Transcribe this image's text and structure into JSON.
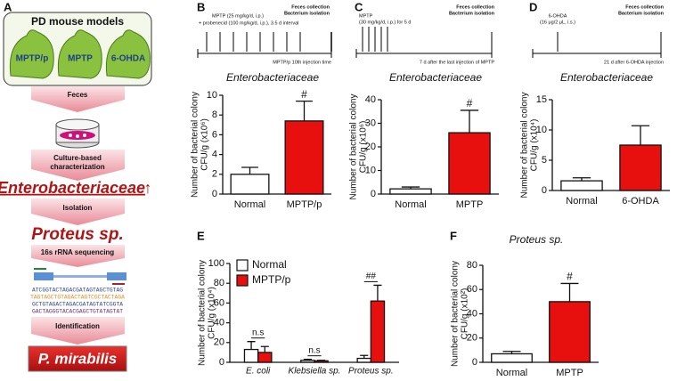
{
  "panels": {
    "a": "A",
    "b": "B",
    "c": "C",
    "d": "D",
    "e": "E",
    "f": "F"
  },
  "panel_a": {
    "title": "PD mouse models",
    "models": [
      "MPTP/p",
      "MPTP",
      "6-OHDA"
    ],
    "feces": "Feces",
    "culture": [
      "Culture-based",
      "characterization"
    ],
    "family": "Enterobacteriaceae",
    "arrow": "↑",
    "isolation": "Isolation",
    "genus": "Proteus sp.",
    "sequencing": "16s rRNA sequencing",
    "sequences": [
      "ATCGGTACTAGACGATAGTAGCTGTAG",
      "TAGTAGCTGTAGACTAGTCGCTACTAGA",
      "GCTGTAGACTAGACGATAGTATCGGTA",
      "GACTAGGGTACACGAGCTGTATAGTAT"
    ],
    "identification": "Identification",
    "species": "P. mirabilis"
  },
  "timelines": [
    {
      "treatment": [
        "MPTP (25 mg/kg/d, i.p.)",
        "+ probenecid (100 mg/kg/d, i.p.), 3.5 d interval"
      ],
      "endpoint": [
        "Feces collection",
        "Bacterium isolation"
      ],
      "note": "MPTP/p 10th injection time"
    },
    {
      "treatment": [
        "MPTP",
        "(30 mg/kg/d, i.p.) for 5 d"
      ],
      "endpoint": [
        "Feces collection",
        "Bacterium isolation"
      ],
      "note": "7 d after the last injection of MPTP"
    },
    {
      "treatment": [
        "6-OHDA",
        "(16 μg/2 μL, i.s.)"
      ],
      "endpoint": [
        "Feces collection",
        "Bacterium isolation"
      ],
      "note": "21 d after 6-OHDA injection"
    }
  ],
  "chart_data": [
    {
      "type": "bar",
      "title": "Enterobacteriaceae",
      "ylabel": [
        "Number of bacterial colony",
        "CFU/g (x10⁶)"
      ],
      "categories": [
        "Normal",
        "MPTP/p"
      ],
      "colors": [
        "#ffffff",
        "#e8100f"
      ],
      "values": [
        2.0,
        7.4
      ],
      "errors": [
        0.7,
        2.0
      ],
      "sig_labels": [
        null,
        "#"
      ],
      "ylim": [
        0,
        10
      ],
      "yticks": [
        0,
        2,
        4,
        6,
        8,
        10
      ]
    },
    {
      "type": "bar",
      "title": "Enterobacteriaceae",
      "ylabel": [
        "Number of bacterial colony",
        "CFU/g (x10⁶)"
      ],
      "categories": [
        "Normal",
        "MPTP"
      ],
      "colors": [
        "#ffffff",
        "#e8100f"
      ],
      "values": [
        2.2,
        26
      ],
      "errors": [
        0.8,
        9.5
      ],
      "sig_labels": [
        null,
        "#"
      ],
      "ylim": [
        0,
        40
      ],
      "yticks": [
        0,
        10,
        20,
        30,
        40
      ]
    },
    {
      "type": "bar",
      "title": "Enterobacteriaceae",
      "ylabel": [
        "Number of bacterial colony",
        "CFU/g (x10⁴)"
      ],
      "categories": [
        "Normal",
        "6-OHDA"
      ],
      "colors": [
        "#ffffff",
        "#e8100f"
      ],
      "values": [
        1.6,
        7.5
      ],
      "errors": [
        0.5,
        3.2
      ],
      "ylim": [
        0,
        15
      ],
      "yticks": [
        0,
        5,
        10,
        15
      ]
    },
    {
      "type": "grouped_bar",
      "ylabel": [
        "Number of bacterial colony",
        "CFU/g (x10⁴)"
      ],
      "categories": [
        "E. coli",
        "Klebsiella sp.",
        "Proteus sp."
      ],
      "series": [
        {
          "name": "Normal",
          "color": "#ffffff",
          "values": [
            13,
            2,
            4
          ],
          "errors": [
            8,
            1,
            3
          ]
        },
        {
          "name": "MPTP/p",
          "color": "#e8100f",
          "values": [
            10,
            1.5,
            62
          ],
          "errors": [
            6,
            0.5,
            16
          ]
        }
      ],
      "sig_labels": [
        "n.s",
        "n.s",
        "##"
      ],
      "ylim": [
        0,
        100
      ],
      "yticks": [
        0,
        20,
        40,
        60,
        80,
        100
      ],
      "legend": "top-left"
    },
    {
      "type": "bar",
      "title": "Proteus sp.",
      "ylabel": [
        "Number of bacterial colony",
        "CFU/g (x10²)"
      ],
      "categories": [
        "Normal",
        "MPTP"
      ],
      "colors": [
        "#ffffff",
        "#e8100f"
      ],
      "values": [
        7,
        50
      ],
      "errors": [
        2,
        15
      ],
      "sig_labels": [
        null,
        "#"
      ],
      "ylim": [
        0,
        80
      ],
      "yticks": [
        0,
        20,
        40,
        60,
        80
      ]
    }
  ]
}
